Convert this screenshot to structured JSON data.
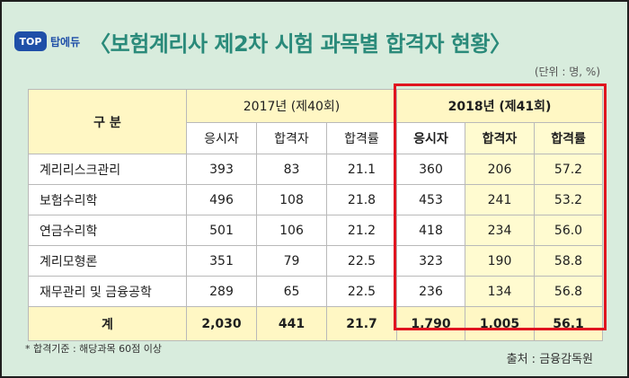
{
  "brand": {
    "badge": "TOP",
    "name": "탑에듀"
  },
  "title": "〈보험계리사 제2차 시험 과목별 합격자 현황〉",
  "unit": "(단위 : 명, %)",
  "table": {
    "category_header": "구 분",
    "year2017": "2017년 (제40회)",
    "year2018": "2018년 (제41회)",
    "col_examinees": "응시자",
    "col_passers": "합격자",
    "col_rate": "합격률",
    "rows": [
      {
        "subject": "계리리스크관리",
        "e17": "393",
        "p17": "83",
        "r17": "21.1",
        "e18": "360",
        "p18": "206",
        "r18": "57.2"
      },
      {
        "subject": "보험수리학",
        "e17": "496",
        "p17": "108",
        "r17": "21.8",
        "e18": "453",
        "p18": "241",
        "r18": "53.2"
      },
      {
        "subject": "연금수리학",
        "e17": "501",
        "p17": "106",
        "r17": "21.2",
        "e18": "418",
        "p18": "234",
        "r18": "56.0"
      },
      {
        "subject": "계리모형론",
        "e17": "351",
        "p17": "79",
        "r17": "22.5",
        "e18": "323",
        "p18": "190",
        "r18": "58.8"
      },
      {
        "subject": "재무관리 및 금융공학",
        "e17": "289",
        "p17": "65",
        "r17": "22.5",
        "e18": "236",
        "p18": "134",
        "r18": "56.8"
      }
    ],
    "total": {
      "label": "계",
      "e17": "2,030",
      "p17": "441",
      "r17": "21.7",
      "e18": "1,790",
      "p18": "1,005",
      "r18": "56.1"
    }
  },
  "note": "* 합격기준 : 해당과목 60점 이상",
  "source": "출처 : 금융감독원",
  "colors": {
    "background": "#d8ecdd",
    "title": "#2a8a7a",
    "header_fill": "#fff7c4",
    "highlight_border": "#e0141f"
  }
}
